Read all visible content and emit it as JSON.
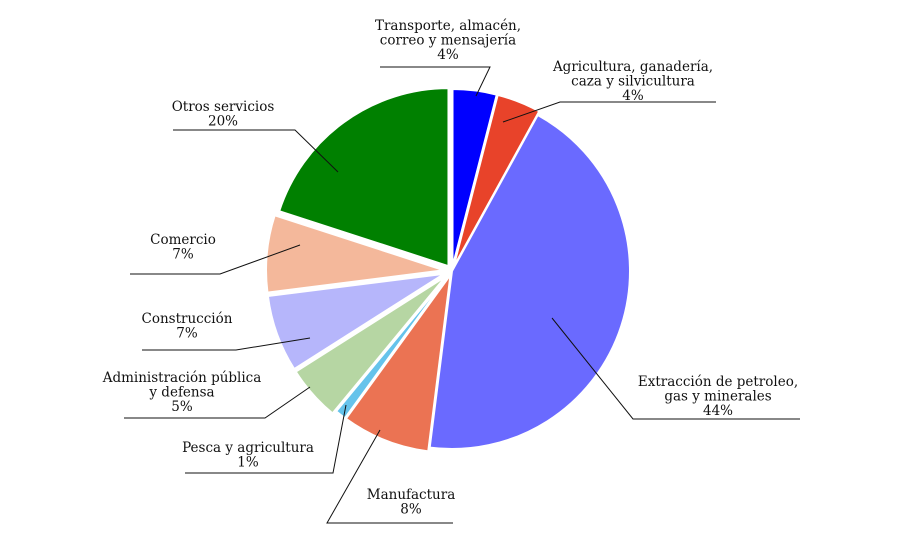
{
  "chart_data": {
    "type": "pie",
    "title": "",
    "slices": [
      {
        "label_lines": [
          "Transporte, almacén,",
          "correo y mensajería"
        ],
        "pct_label": "4%",
        "value": 4,
        "color": "#0000ff"
      },
      {
        "label_lines": [
          "Agricultura, ganadería,",
          "caza y silvicultura"
        ],
        "pct_label": "4%",
        "value": 4,
        "color": "#e8432a"
      },
      {
        "label_lines": [
          "Extracción de petroleo,",
          "gas y minerales"
        ],
        "pct_label": "44%",
        "value": 44,
        "color": "#6a6aff"
      },
      {
        "label_lines": [
          "Manufactura"
        ],
        "pct_label": "8%",
        "value": 8,
        "color": "#eb7353"
      },
      {
        "label_lines": [
          "Pesca y agricultura"
        ],
        "pct_label": "1%",
        "value": 1,
        "color": "#66c3eb"
      },
      {
        "label_lines": [
          "Administración pública",
          "y defensa"
        ],
        "pct_label": "5%",
        "value": 5,
        "color": "#b6d6a3"
      },
      {
        "label_lines": [
          "Construcción"
        ],
        "pct_label": "7%",
        "value": 7,
        "color": "#b6b6fb"
      },
      {
        "label_lines": [
          "Comercio"
        ],
        "pct_label": "7%",
        "value": 7,
        "color": "#f4b89b"
      },
      {
        "label_lines": [
          "Otros servicios"
        ],
        "pct_label": "20%",
        "value": 20,
        "color": "#008000"
      }
    ]
  }
}
